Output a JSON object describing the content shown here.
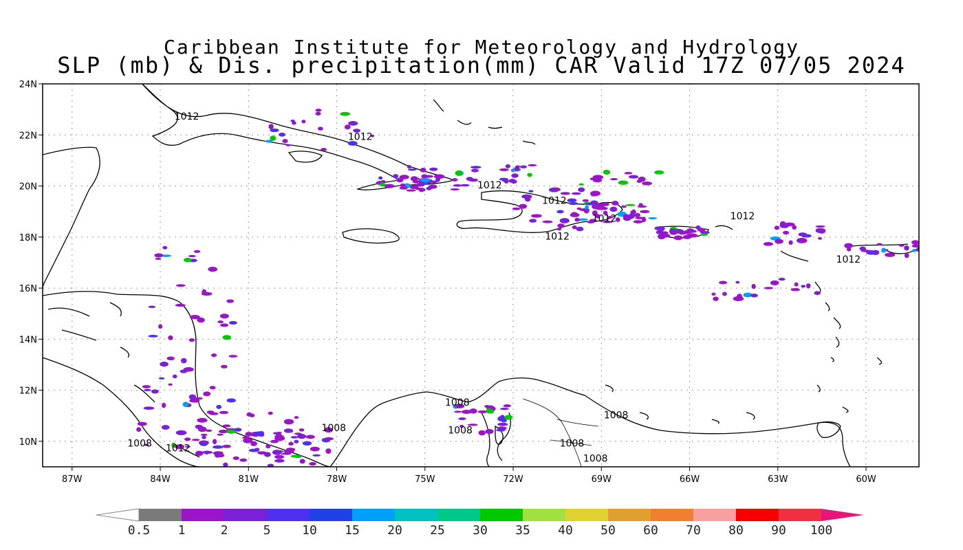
{
  "header": {
    "line1": "Caribbean Institute for Meteorology and Hydrology",
    "line2": "SLP (mb) & Dis. precipitation(mm) CAR Valid 17Z 07/05 2024"
  },
  "map": {
    "lat_labels": [
      "24N",
      "22N",
      "20N",
      "18N",
      "16N",
      "14N",
      "12N",
      "10N"
    ],
    "lon_labels": [
      "87W",
      "84W",
      "81W",
      "78W",
      "75W",
      "72W",
      "69W",
      "66W",
      "63W",
      "60W"
    ],
    "lat_range": [
      9,
      24
    ],
    "lon_range": [
      -88.0,
      -58.2
    ],
    "grid": true,
    "isobar_labels": [
      {
        "text": "1012",
        "lon": -83.1,
        "lat": 22.6
      },
      {
        "text": "1012",
        "lon": -77.2,
        "lat": 21.8
      },
      {
        "text": "1012",
        "lon": -72.8,
        "lat": 19.9
      },
      {
        "text": "1012",
        "lon": -70.6,
        "lat": 19.3
      },
      {
        "text": "1012",
        "lon": -68.9,
        "lat": 18.6
      },
      {
        "text": "1012",
        "lon": -70.5,
        "lat": 17.9
      },
      {
        "text": "1012",
        "lon": -64.2,
        "lat": 18.7
      },
      {
        "text": "1012",
        "lon": -60.6,
        "lat": 17.0
      },
      {
        "text": "1008",
        "lon": -73.9,
        "lat": 11.4
      },
      {
        "text": "1008",
        "lon": -73.8,
        "lat": 10.3
      },
      {
        "text": "1008",
        "lon": -78.1,
        "lat": 10.4
      },
      {
        "text": "1008",
        "lon": -68.5,
        "lat": 10.9
      },
      {
        "text": "1008",
        "lon": -70.0,
        "lat": 9.8
      },
      {
        "text": "1008",
        "lon": -69.2,
        "lat": 9.2
      },
      {
        "text": "1008",
        "lon": -84.7,
        "lat": 9.8
      },
      {
        "text": "1012",
        "lon": -83.4,
        "lat": 9.6
      }
    ]
  },
  "colorbar": {
    "labels": [
      "0.5",
      "1",
      "2",
      "5",
      "10",
      "15",
      "20",
      "25",
      "30",
      "35",
      "40",
      "50",
      "60",
      "70",
      "80",
      "90",
      "100"
    ],
    "colors": [
      "#7a7a7a",
      "#9a14c8",
      "#7a20d8",
      "#5030f0",
      "#2040e8",
      "#00a0f8",
      "#00c0c0",
      "#00c888",
      "#00c800",
      "#a0e040",
      "#e0d030",
      "#e0a030",
      "#f08030",
      "#f8a0a0",
      "#f80000",
      "#f03040"
    ],
    "low_color": "#ffffff",
    "high_color": "#e8147a"
  }
}
